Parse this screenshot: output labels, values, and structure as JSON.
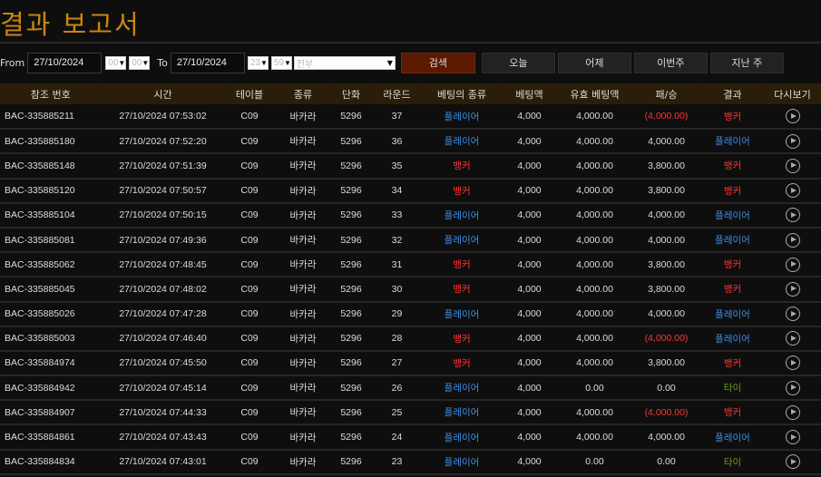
{
  "title": "결과 보고서",
  "filters": {
    "from_label": "From",
    "from_date": "27/10/2024",
    "from_hour": "00",
    "from_min": "00",
    "to_label": "To",
    "to_date": "27/10/2024",
    "to_hour": "23",
    "to_min": "59",
    "type_select": "전부",
    "search": "검색",
    "today": "오늘",
    "yesterday": "어제",
    "this_week": "이번주",
    "last_week": "지난 주"
  },
  "columns": [
    "참조 번호",
    "시간",
    "테이블",
    "종류",
    "단화",
    "라운드",
    "베팅의 종류",
    "베팅액",
    "유효 베팅액",
    "패/승",
    "결과",
    "다시보기"
  ],
  "colors": {
    "player": "#3d8fe8",
    "banker": "#ff3434",
    "tie": "#6f9e16",
    "accent": "#c8870f"
  },
  "rows": [
    [
      "BAC-335885211",
      "27/10/2024 07:53:02",
      "C09",
      "바카라",
      "5296",
      "37",
      "플레이어",
      "4,000",
      "4,000.00",
      "(4,000.00)",
      "뱅커"
    ],
    [
      "BAC-335885180",
      "27/10/2024 07:52:20",
      "C09",
      "바카라",
      "5296",
      "36",
      "플레이어",
      "4,000",
      "4,000.00",
      "4,000.00",
      "플레이어"
    ],
    [
      "BAC-335885148",
      "27/10/2024 07:51:39",
      "C09",
      "바카라",
      "5296",
      "35",
      "뱅커",
      "4,000",
      "4,000.00",
      "3,800.00",
      "뱅커"
    ],
    [
      "BAC-335885120",
      "27/10/2024 07:50:57",
      "C09",
      "바카라",
      "5296",
      "34",
      "뱅커",
      "4,000",
      "4,000.00",
      "3,800.00",
      "뱅커"
    ],
    [
      "BAC-335885104",
      "27/10/2024 07:50:15",
      "C09",
      "바카라",
      "5296",
      "33",
      "플레이어",
      "4,000",
      "4,000.00",
      "4,000.00",
      "플레이어"
    ],
    [
      "BAC-335885081",
      "27/10/2024 07:49:36",
      "C09",
      "바카라",
      "5296",
      "32",
      "플레이어",
      "4,000",
      "4,000.00",
      "4,000.00",
      "플레이어"
    ],
    [
      "BAC-335885062",
      "27/10/2024 07:48:45",
      "C09",
      "바카라",
      "5296",
      "31",
      "뱅커",
      "4,000",
      "4,000.00",
      "3,800.00",
      "뱅커"
    ],
    [
      "BAC-335885045",
      "27/10/2024 07:48:02",
      "C09",
      "바카라",
      "5296",
      "30",
      "뱅커",
      "4,000",
      "4,000.00",
      "3,800.00",
      "뱅커"
    ],
    [
      "BAC-335885026",
      "27/10/2024 07:47:28",
      "C09",
      "바카라",
      "5296",
      "29",
      "플레이어",
      "4,000",
      "4,000.00",
      "4,000.00",
      "플레이어"
    ],
    [
      "BAC-335885003",
      "27/10/2024 07:46:40",
      "C09",
      "바카라",
      "5296",
      "28",
      "뱅커",
      "4,000",
      "4,000.00",
      "(4,000.00)",
      "플레이어"
    ],
    [
      "BAC-335884974",
      "27/10/2024 07:45:50",
      "C09",
      "바카라",
      "5296",
      "27",
      "뱅커",
      "4,000",
      "4,000.00",
      "3,800.00",
      "뱅커"
    ],
    [
      "BAC-335884942",
      "27/10/2024 07:45:14",
      "C09",
      "바카라",
      "5296",
      "26",
      "플레이어",
      "4,000",
      "0.00",
      "0.00",
      "타이"
    ],
    [
      "BAC-335884907",
      "27/10/2024 07:44:33",
      "C09",
      "바카라",
      "5296",
      "25",
      "플레이어",
      "4,000",
      "4,000.00",
      "(4,000.00)",
      "뱅커"
    ],
    [
      "BAC-335884861",
      "27/10/2024 07:43:43",
      "C09",
      "바카라",
      "5296",
      "24",
      "플레이어",
      "4,000",
      "4,000.00",
      "4,000.00",
      "플레이어"
    ],
    [
      "BAC-335884834",
      "27/10/2024 07:43:01",
      "C09",
      "바카라",
      "5296",
      "23",
      "플레이어",
      "4,000",
      "0.00",
      "0.00",
      "타이"
    ]
  ]
}
